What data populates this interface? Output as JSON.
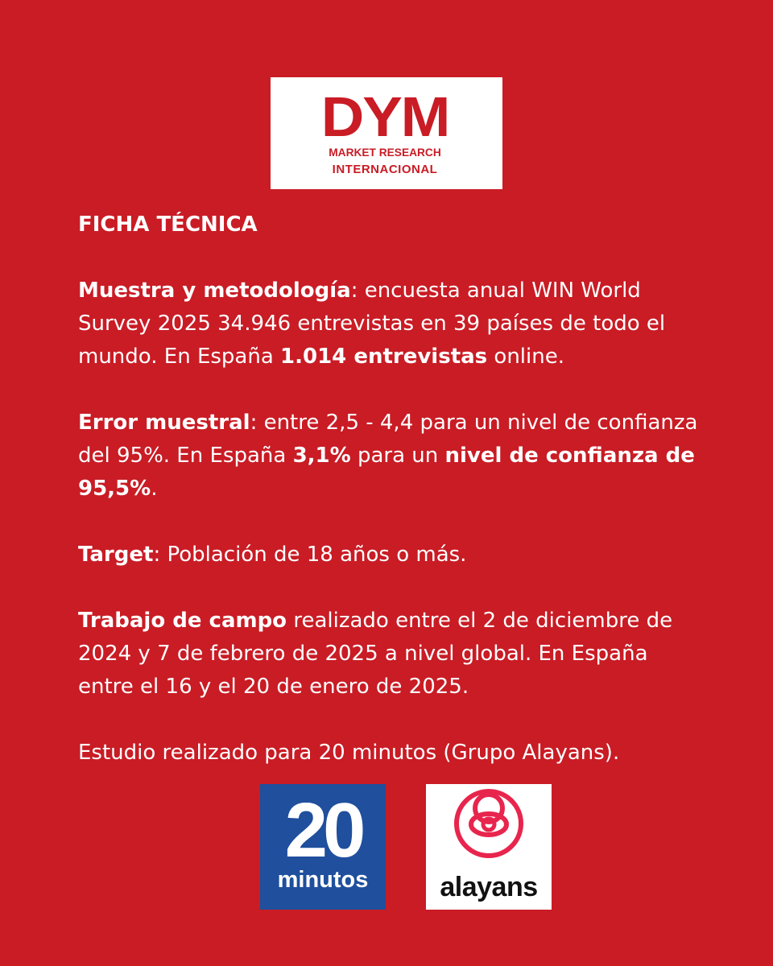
{
  "logo_dym": {
    "mark": "DYM",
    "line1": "MARKET RESEARCH",
    "line2": "INTERNACIONAL"
  },
  "title": "FICHA TÉCNICA",
  "paragraphs": {
    "muestra": {
      "label": "Muestra y metodología",
      "text1": ": encuesta anual WIN World Survey 2025 34.946 entrevistas en 39 países de todo el mundo. En España ",
      "bold": "1.014 entrevistas",
      "text2": " online."
    },
    "error": {
      "label": "Error muestral",
      "text1": ": entre 2,5 - 4,4 para un nivel de confianza del 95%. En España ",
      "bold1": "3,1%",
      "text2": " para un ",
      "bold2": "nivel de confianza de 95,5%",
      "text3": "."
    },
    "target": {
      "label": "Target",
      "text": ": Población de 18 años o más."
    },
    "trabajo": {
      "label": "Trabajo de campo",
      "text": " realizado entre el 2 de diciembre de 2024 y 7 de febrero de 2025 a nivel global. En España entre el 16 y el 20 de enero de 2025."
    },
    "estudio": {
      "text": "Estudio realizado para 20 minutos (Grupo Alayans)."
    }
  },
  "logo_20minutos": {
    "number": "20",
    "word": "minutos",
    "color": "#1f4f9d"
  },
  "logo_alayans": {
    "word": "alayans",
    "color": "#e8254d"
  },
  "colors": {
    "background": "#c91c25",
    "text": "#ffffff"
  }
}
